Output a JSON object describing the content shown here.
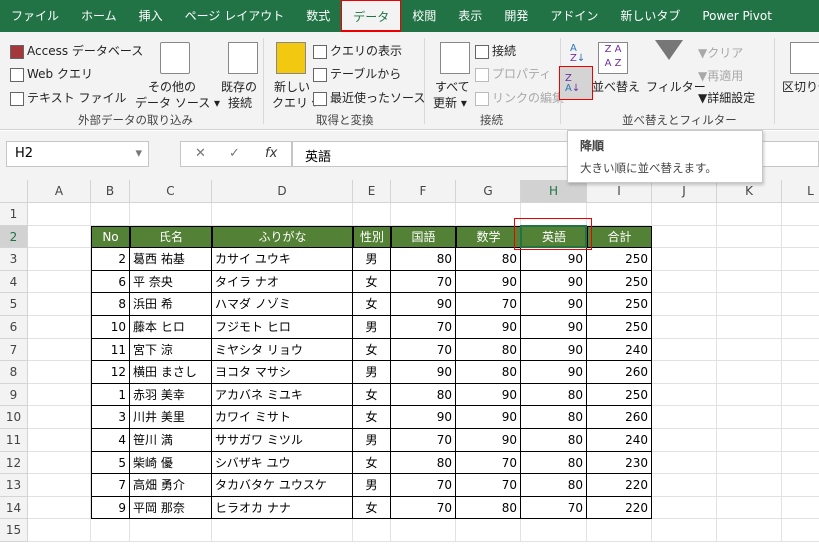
{
  "tabs": [
    "ファイル",
    "ホーム",
    "挿入",
    "ページ レイアウト",
    "数式",
    "データ",
    "校閲",
    "表示",
    "開発",
    "アドイン",
    "新しいタブ",
    "Power Pivot"
  ],
  "active_tab": "データ",
  "ribbon": {
    "external": {
      "access": "Access データベース",
      "web": "Web クエリ",
      "text": "テキスト ファイル",
      "other": "その他の",
      "other2": "データ ソース",
      "existing": "既存の",
      "existing2": "接続",
      "group": "外部データの取り込み"
    },
    "transform": {
      "newq": "新しい",
      "newq2": "クエリ",
      "show": "クエリの表示",
      "fromtable": "テーブルから",
      "recent": "最近使ったソース",
      "group": "取得と変換"
    },
    "conn": {
      "refresh": "すべて",
      "refresh2": "更新",
      "connections": "接続",
      "properties": "プロパティ",
      "editlinks": "リンクの編集",
      "group": "接続"
    },
    "sort": {
      "sort": "並べ替え",
      "filter": "フィルター",
      "clear": "クリア",
      "reapply": "再適用",
      "advanced": "詳細設定",
      "group": "並べ替えとフィルター"
    },
    "text": {
      "split": "区切り位"
    }
  },
  "tooltip": {
    "title": "降順",
    "desc": "大きい順に並べ替えます。"
  },
  "formula": {
    "namebox": "H2",
    "fx": "fx",
    "value": "英語"
  },
  "columns": [
    "A",
    "B",
    "C",
    "D",
    "E",
    "F",
    "G",
    "H",
    "I",
    "J",
    "K",
    "L"
  ],
  "rows": [
    "1",
    "2",
    "3",
    "4",
    "5",
    "6",
    "7",
    "8",
    "9",
    "10",
    "11",
    "12",
    "13",
    "14",
    "15"
  ],
  "header_color": "#538135",
  "table": {
    "headers": [
      "No",
      "氏名",
      "ふりがな",
      "性別",
      "国語",
      "数学",
      "英語",
      "合計"
    ],
    "rows": [
      [
        "2",
        "葛西 祐基",
        "カサイ ユウキ",
        "男",
        "80",
        "80",
        "90",
        "250"
      ],
      [
        "6",
        "平 奈央",
        "タイラ ナオ",
        "女",
        "70",
        "90",
        "90",
        "250"
      ],
      [
        "8",
        "浜田 希",
        "ハマダ ノゾミ",
        "女",
        "90",
        "70",
        "90",
        "250"
      ],
      [
        "10",
        "藤本 ヒロ",
        "フジモト ヒロ",
        "男",
        "70",
        "90",
        "90",
        "250"
      ],
      [
        "11",
        "宮下 涼",
        "ミヤシタ リョウ",
        "女",
        "70",
        "80",
        "90",
        "240"
      ],
      [
        "12",
        "横田 まさし",
        "ヨコタ マサシ",
        "男",
        "90",
        "80",
        "90",
        "260"
      ],
      [
        "1",
        "赤羽 美幸",
        "アカバネ ミユキ",
        "女",
        "80",
        "90",
        "80",
        "250"
      ],
      [
        "3",
        "川井 美里",
        "カワイ ミサト",
        "女",
        "90",
        "90",
        "80",
        "260"
      ],
      [
        "4",
        "笹川 満",
        "ササガワ ミツル",
        "男",
        "70",
        "90",
        "80",
        "240"
      ],
      [
        "5",
        "柴崎 優",
        "シバザキ ユウ",
        "女",
        "80",
        "70",
        "80",
        "230"
      ],
      [
        "7",
        "高畑 勇介",
        "タカバタケ ユウスケ",
        "男",
        "70",
        "70",
        "80",
        "220"
      ],
      [
        "9",
        "平岡 那奈",
        "ヒラオカ ナナ",
        "女",
        "70",
        "80",
        "70",
        "220"
      ]
    ]
  }
}
